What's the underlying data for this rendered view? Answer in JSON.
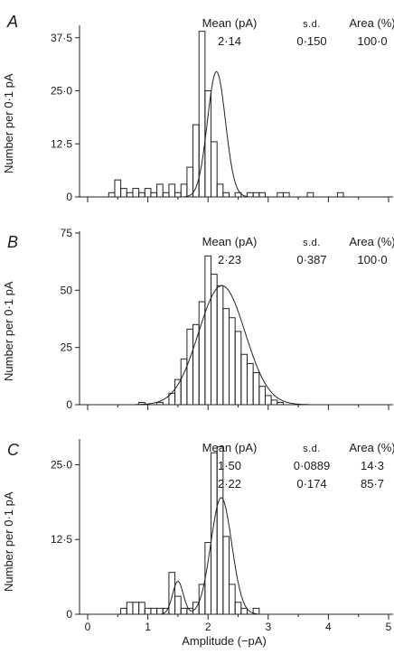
{
  "xlabel": "Amplitude (−pA)",
  "ylabel": "Number per 0·1 pA",
  "chart_data": [
    {
      "panel": "A",
      "type": "bar",
      "xlim": [
        0,
        5
      ],
      "ylim": [
        0,
        40
      ],
      "yticks": [
        0,
        12.5,
        25.0,
        37.5
      ],
      "ytick_labels": [
        "0",
        "12·5",
        "25·0",
        "37·5"
      ],
      "hist_x": [
        0.4,
        0.5,
        0.6,
        0.7,
        0.8,
        0.9,
        1.0,
        1.1,
        1.2,
        1.3,
        1.4,
        1.5,
        1.6,
        1.7,
        1.8,
        1.9,
        2.0,
        2.1,
        2.2,
        2.3,
        2.4,
        2.5,
        2.6,
        2.7,
        2.8,
        2.9,
        3.0,
        3.1,
        3.2,
        3.3,
        3.4,
        3.5,
        3.6,
        3.7,
        3.8,
        3.9,
        4.0,
        4.1,
        4.2
      ],
      "hist_y": [
        1,
        4,
        2,
        1,
        2,
        1,
        2,
        1,
        3,
        1,
        3,
        1,
        3,
        7,
        17,
        39,
        25,
        13,
        3,
        1,
        0,
        1,
        0,
        1,
        1,
        1,
        0,
        0,
        1,
        1,
        0,
        0,
        0,
        1,
        0,
        0,
        0,
        0,
        1
      ],
      "fits": [
        {
          "mean": 2.14,
          "sd": 0.15,
          "peak": 29.5
        }
      ],
      "stats_header": [
        "Mean (pA)",
        "s.d.",
        "Area (%)"
      ],
      "stats_rows": [
        [
          "2·14",
          "0·150",
          "100·0"
        ]
      ]
    },
    {
      "panel": "B",
      "type": "bar",
      "xlim": [
        0,
        5
      ],
      "ylim": [
        0,
        75
      ],
      "yticks": [
        0,
        25,
        50,
        75
      ],
      "ytick_labels": [
        "0",
        "25",
        "50",
        "75"
      ],
      "hist_x": [
        0.9,
        1.2,
        1.4,
        1.5,
        1.6,
        1.7,
        1.8,
        1.9,
        2.0,
        2.1,
        2.2,
        2.3,
        2.4,
        2.5,
        2.6,
        2.7,
        2.8,
        2.9,
        3.0,
        3.1,
        3.2
      ],
      "hist_y": [
        1,
        1,
        5,
        11,
        20,
        33,
        35,
        45,
        65,
        57,
        52,
        42,
        38,
        32,
        22,
        18,
        14,
        8,
        4,
        2,
        1
      ],
      "fits": [
        {
          "mean": 2.23,
          "sd": 0.387,
          "peak": 52
        }
      ],
      "stats_header": [
        "Mean (pA)",
        "s.d.",
        "Area (%)"
      ],
      "stats_rows": [
        [
          "2·23",
          "0·387",
          "100·0"
        ]
      ]
    },
    {
      "panel": "C",
      "type": "bar",
      "xlim": [
        0,
        5
      ],
      "ylim": [
        0,
        29
      ],
      "yticks": [
        0,
        12.5,
        25.0
      ],
      "ytick_labels": [
        "0",
        "12·5",
        "25·0"
      ],
      "hist_x": [
        0.6,
        0.7,
        0.8,
        0.9,
        1.0,
        1.1,
        1.2,
        1.3,
        1.4,
        1.5,
        1.6,
        1.7,
        1.8,
        1.9,
        2.0,
        2.1,
        2.2,
        2.3,
        2.4,
        2.5,
        2.6,
        2.7,
        2.8
      ],
      "hist_y": [
        1,
        2,
        2,
        2,
        1,
        1,
        1,
        1,
        7,
        3,
        1,
        1,
        2,
        5,
        12,
        27,
        28,
        13,
        5,
        2,
        1,
        0,
        1
      ],
      "fits": [
        {
          "mean": 1.5,
          "sd": 0.0889,
          "peak": 5.5
        },
        {
          "mean": 2.22,
          "sd": 0.174,
          "peak": 19.5
        }
      ],
      "stats_header": [
        "Mean (pA)",
        "s.d.",
        "Area (%)"
      ],
      "stats_rows": [
        [
          "1·50",
          "0·0889",
          "14·3"
        ],
        [
          "2·22",
          "0·174",
          "85·7"
        ]
      ]
    }
  ],
  "xticks": [
    0,
    1,
    2,
    3,
    4,
    5
  ],
  "xtick_labels": [
    "0",
    "1",
    "2",
    "3",
    "4",
    "5"
  ]
}
